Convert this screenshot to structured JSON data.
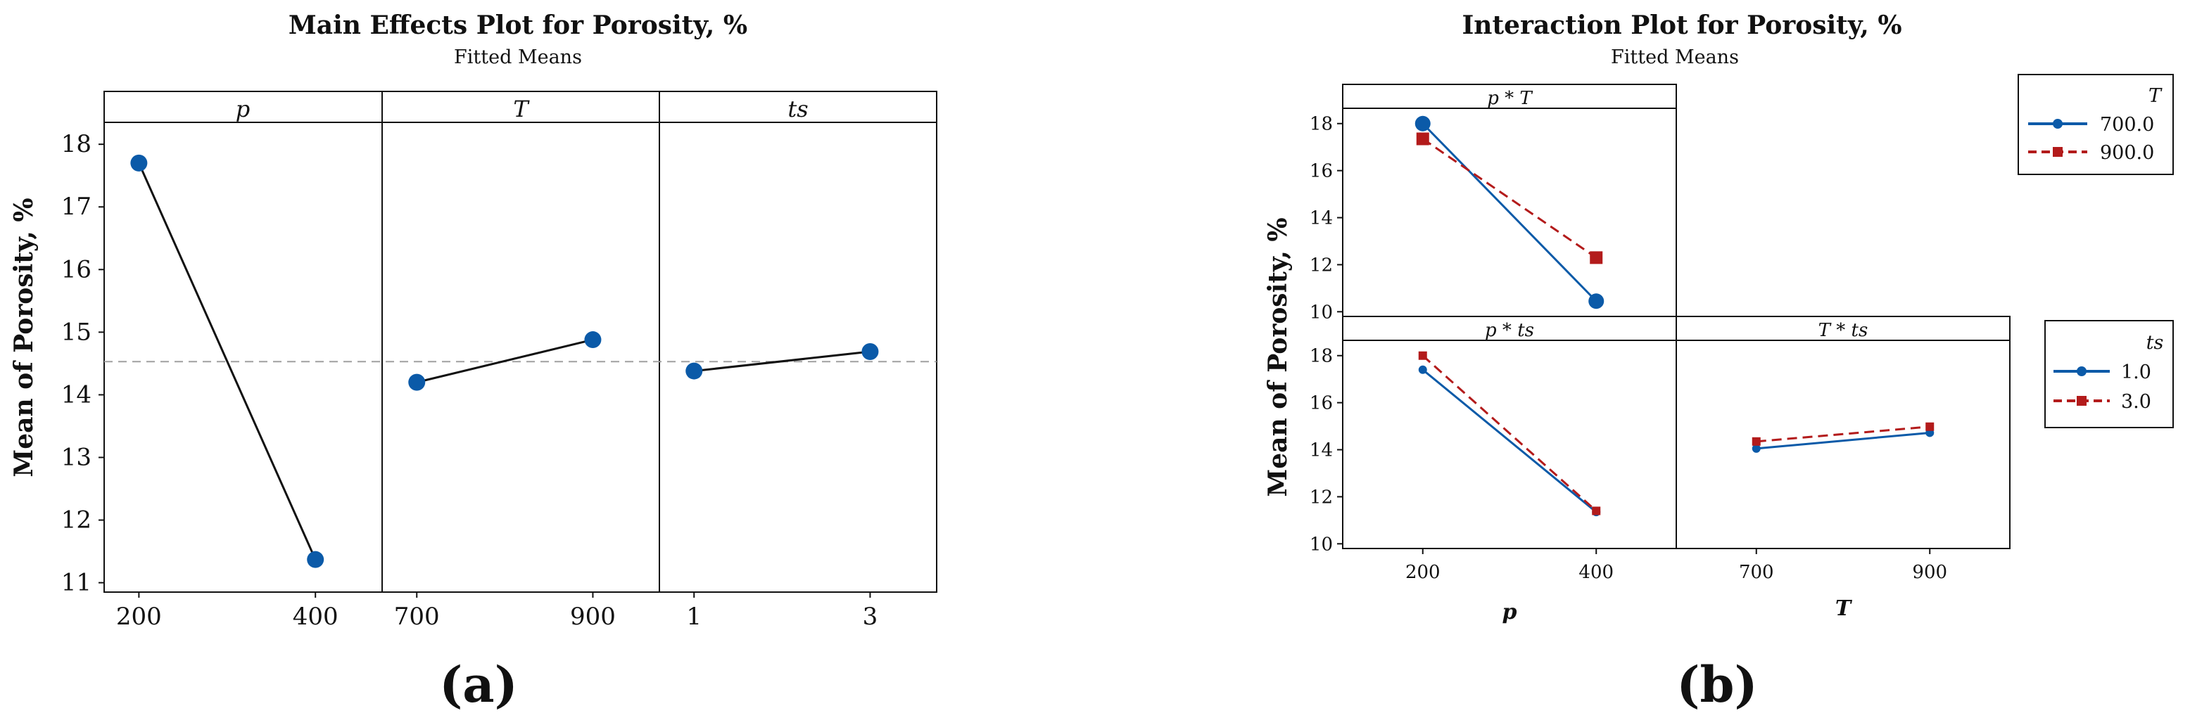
{
  "colors": {
    "blue": "#0b5aa8",
    "red": "#b31b1b",
    "black": "#111111",
    "ref": "#a0a0a0"
  },
  "chart_data": [
    {
      "type": "line",
      "title": "Main Effects Plot for Porosity, %",
      "subtitle": "Fitted Means",
      "ylabel": "Mean of Porosity, %",
      "ylim": [
        10.85,
        18.35
      ],
      "yticks": [
        11,
        12,
        13,
        14,
        15,
        16,
        17,
        18
      ],
      "reference_line": 14.53,
      "panel_label": "(a)",
      "panels": [
        {
          "factor": "p",
          "x": [
            "200",
            "400"
          ],
          "values": [
            17.7,
            11.37
          ]
        },
        {
          "factor": "T",
          "x": [
            "700",
            "900"
          ],
          "values": [
            14.2,
            14.88
          ]
        },
        {
          "factor": "ts",
          "x": [
            "1",
            "3"
          ],
          "values": [
            14.38,
            14.69
          ]
        }
      ]
    },
    {
      "type": "line",
      "title": "Interaction Plot for Porosity, %",
      "subtitle": "Fitted Means",
      "ylabel": "Mean of Porosity, %",
      "ylim": [
        9.8,
        18.65
      ],
      "yticks": [
        10,
        12,
        14,
        16,
        18
      ],
      "panel_label": "(b)",
      "xlabels": [
        "p",
        "T"
      ],
      "legends": [
        {
          "title": "T",
          "entries": [
            "700.0",
            "900.0"
          ]
        },
        {
          "title": "ts",
          "entries": [
            "1.0",
            "3.0"
          ]
        }
      ],
      "panels": [
        {
          "strip": "p * T",
          "x": [
            "200",
            "400"
          ],
          "series": [
            {
              "name": "700.0",
              "values": [
                18.0,
                10.45
              ]
            },
            {
              "name": "900.0",
              "values": [
                17.35,
                12.3
              ]
            }
          ]
        },
        {
          "strip": "p * ts",
          "x": [
            "200",
            "400"
          ],
          "series": [
            {
              "name": "1.0",
              "values": [
                17.4,
                11.35
              ]
            },
            {
              "name": "3.0",
              "values": [
                18.0,
                11.4
              ]
            }
          ]
        },
        {
          "strip": "T * ts",
          "x": [
            "700",
            "900"
          ],
          "series": [
            {
              "name": "1.0",
              "values": [
                14.05,
                14.72
              ]
            },
            {
              "name": "3.0",
              "values": [
                14.35,
                14.98
              ]
            }
          ]
        }
      ]
    }
  ]
}
